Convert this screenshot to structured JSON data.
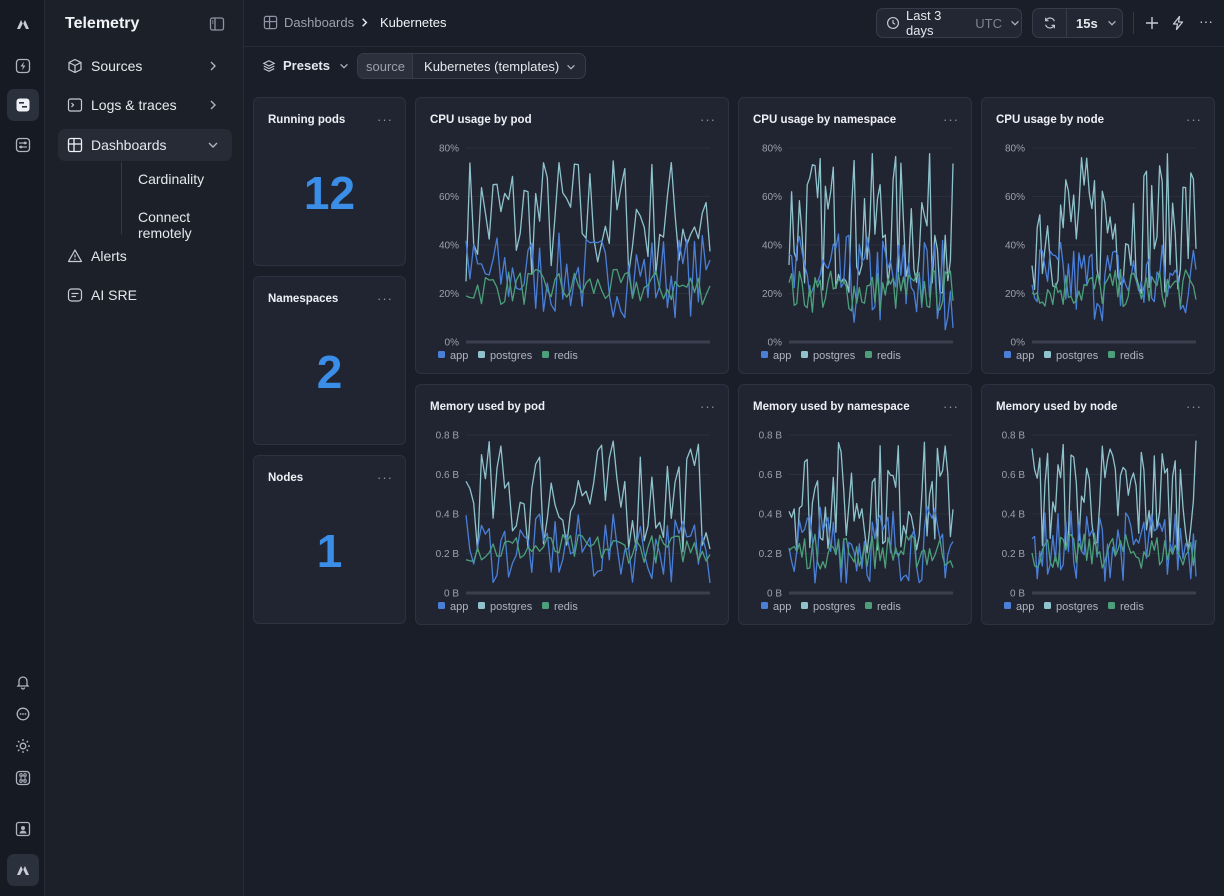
{
  "app": {
    "title": "Telemetry"
  },
  "sidebar": {
    "items": [
      {
        "label": "Sources",
        "icon": "cube-icon"
      },
      {
        "label": "Logs & traces",
        "icon": "terminal-icon"
      },
      {
        "label": "Dashboards",
        "icon": "dashboard-icon"
      },
      {
        "label": "Alerts",
        "icon": "warning-icon"
      },
      {
        "label": "AI SRE",
        "icon": "chat-icon"
      }
    ],
    "dashboard_subitems": [
      "Cardinality",
      "Connect remotely"
    ]
  },
  "breadcrumb": {
    "root": "Dashboards",
    "current": "Kubernetes"
  },
  "header": {
    "time_range": "Last 3 days",
    "timezone": "UTC",
    "refresh_interval": "15s"
  },
  "toolbar": {
    "presets_label": "Presets",
    "source_key": "source",
    "source_value": "Kubernetes (templates)"
  },
  "stats": [
    {
      "title": "Running pods",
      "value": "12"
    },
    {
      "title": "Namespaces",
      "value": "2"
    },
    {
      "title": "Nodes",
      "value": "1"
    }
  ],
  "colors": {
    "app": "#4a7fd8",
    "postgres": "#8fc3cc",
    "redis": "#4c9f7a",
    "stat_value": "#3b8ee8",
    "accent": "#2a303c"
  },
  "chart_data": [
    {
      "type": "line",
      "title": "CPU usage by pod",
      "ylim": [
        0,
        80
      ],
      "yticks": [
        "0%",
        "20%",
        "40%",
        "60%",
        "80%"
      ],
      "series": [
        {
          "name": "app",
          "range": [
            10,
            45
          ]
        },
        {
          "name": "postgres",
          "range": [
            25,
            78
          ]
        },
        {
          "name": "redis",
          "range": [
            15,
            30
          ]
        }
      ]
    },
    {
      "type": "line",
      "title": "CPU usage by namespace",
      "ylim": [
        0,
        80
      ],
      "yticks": [
        "0%",
        "20%",
        "40%",
        "60%",
        "80%"
      ],
      "series": [
        {
          "name": "app",
          "range": [
            5,
            45
          ]
        },
        {
          "name": "postgres",
          "range": [
            20,
            78
          ]
        },
        {
          "name": "redis",
          "range": [
            12,
            30
          ]
        }
      ]
    },
    {
      "type": "line",
      "title": "CPU usage by node",
      "ylim": [
        0,
        80
      ],
      "yticks": [
        "0%",
        "20%",
        "40%",
        "60%",
        "80%"
      ],
      "series": [
        {
          "name": "app",
          "range": [
            8,
            42
          ]
        },
        {
          "name": "postgres",
          "range": [
            20,
            78
          ]
        },
        {
          "name": "redis",
          "range": [
            14,
            30
          ]
        }
      ]
    },
    {
      "type": "line",
      "title": "Memory used by pod",
      "ylim": [
        0,
        0.8
      ],
      "yticks": [
        "0 B",
        "0.2 B",
        "0.4 B",
        "0.6 B",
        "0.8 B"
      ],
      "series": [
        {
          "name": "app",
          "range": [
            0.05,
            0.4
          ]
        },
        {
          "name": "postgres",
          "range": [
            0.2,
            0.78
          ]
        },
        {
          "name": "redis",
          "range": [
            0.15,
            0.3
          ]
        }
      ]
    },
    {
      "type": "line",
      "title": "Memory used by namespace",
      "ylim": [
        0,
        0.8
      ],
      "yticks": [
        "0 B",
        "0.2 B",
        "0.4 B",
        "0.6 B",
        "0.8 B"
      ],
      "series": [
        {
          "name": "app",
          "range": [
            0.05,
            0.45
          ]
        },
        {
          "name": "postgres",
          "range": [
            0.2,
            0.78
          ]
        },
        {
          "name": "redis",
          "range": [
            0.12,
            0.3
          ]
        }
      ]
    },
    {
      "type": "line",
      "title": "Memory used by node",
      "ylim": [
        0,
        0.8
      ],
      "yticks": [
        "0 B",
        "0.2 B",
        "0.4 B",
        "0.6 B",
        "0.8 B"
      ],
      "series": [
        {
          "name": "app",
          "range": [
            0.06,
            0.42
          ]
        },
        {
          "name": "postgres",
          "range": [
            0.2,
            0.78
          ]
        },
        {
          "name": "redis",
          "range": [
            0.12,
            0.3
          ]
        }
      ]
    }
  ]
}
